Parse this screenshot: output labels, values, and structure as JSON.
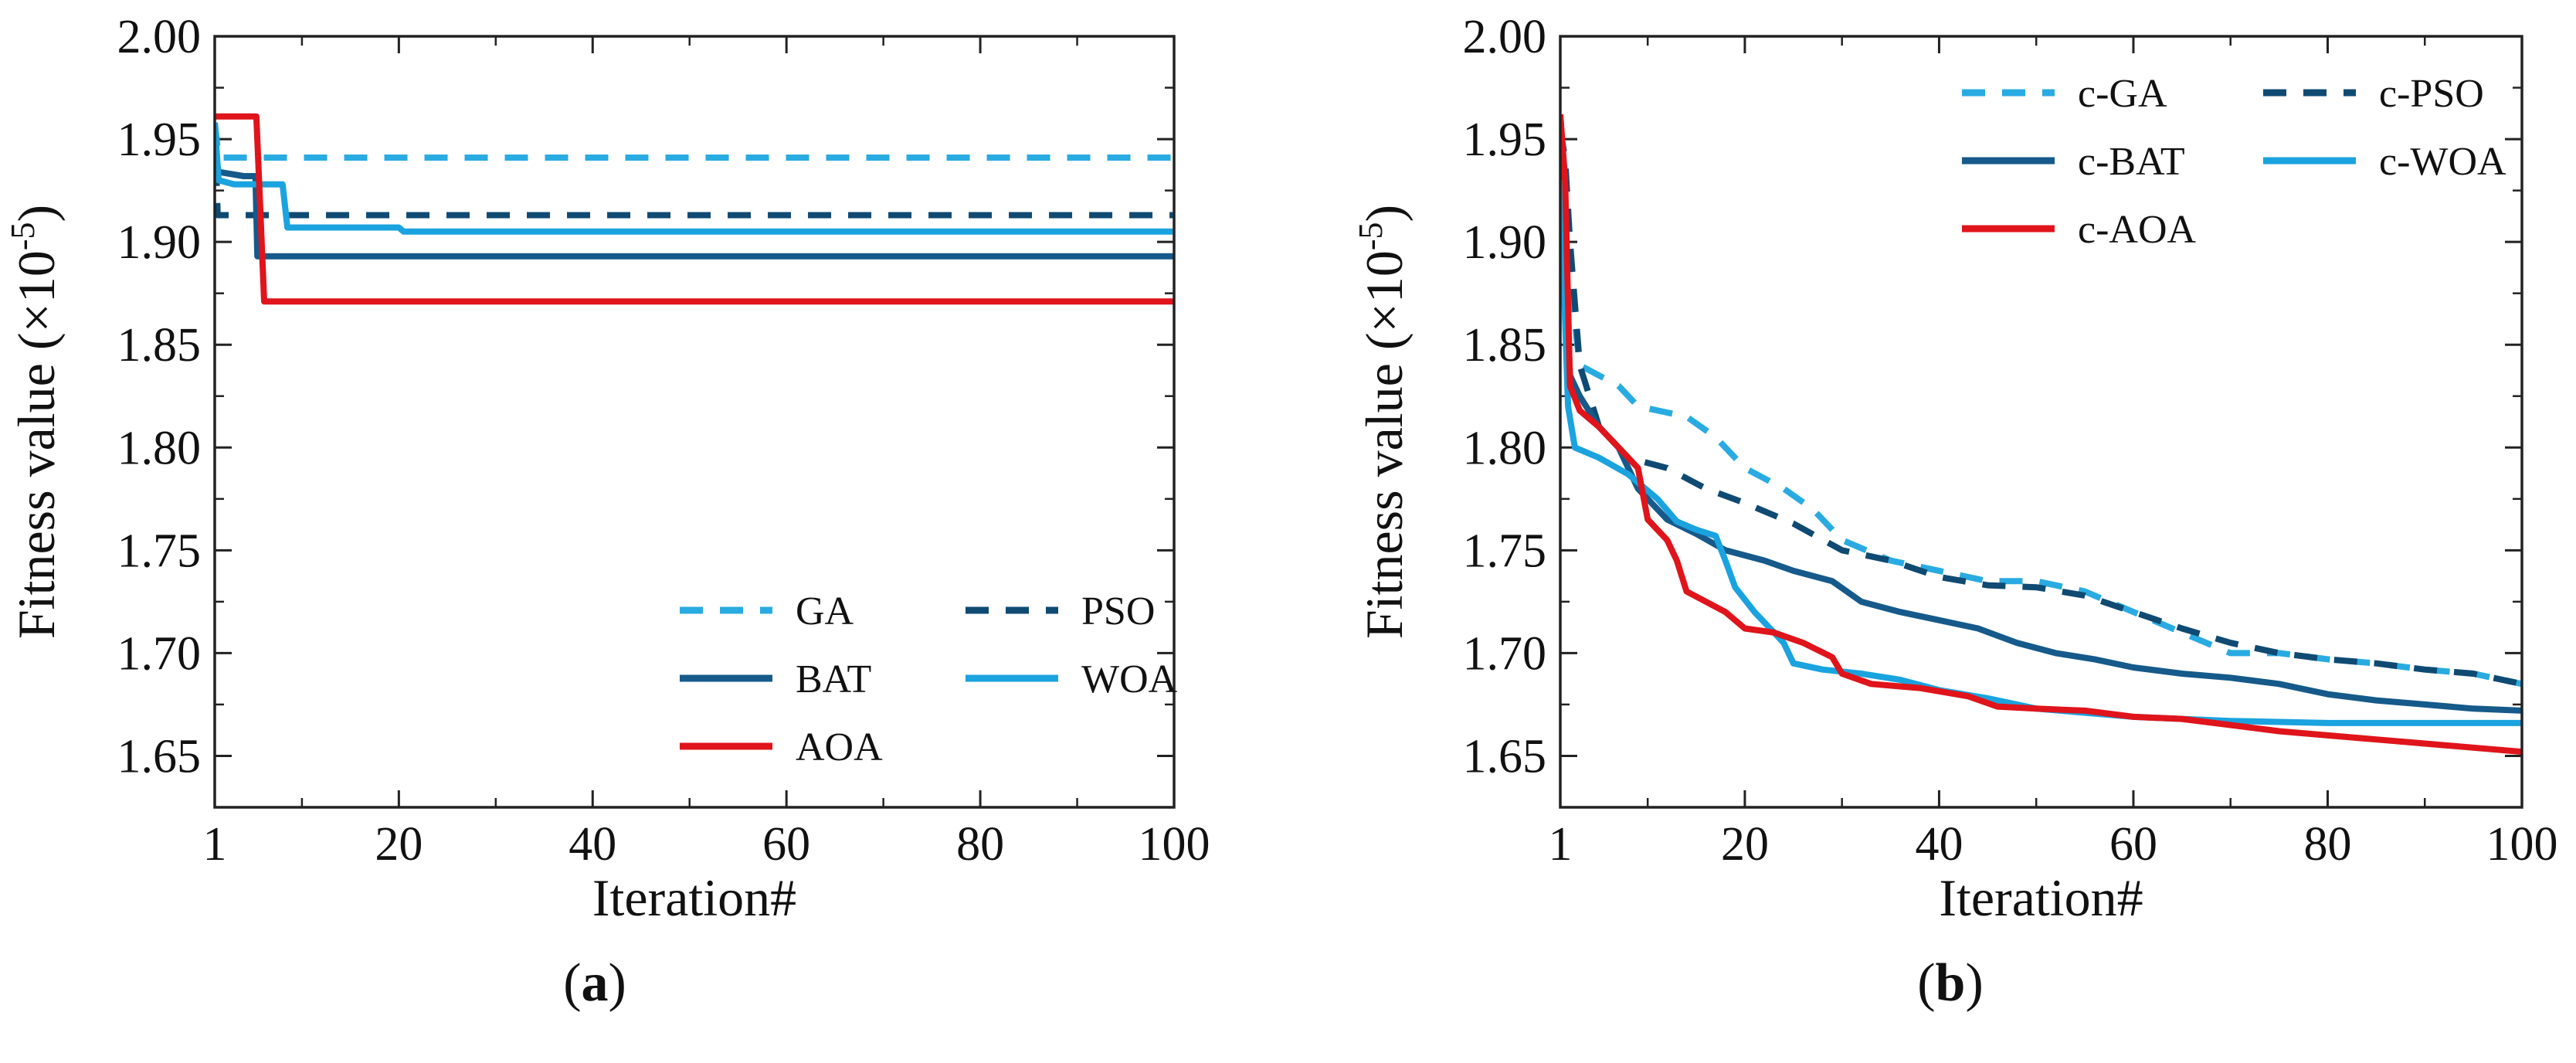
{
  "colors": {
    "ga": "#29abe2",
    "pso": "#0f4a73",
    "bat": "#155a8a",
    "woa": "#1aa3df",
    "aoa": "#e0141b",
    "axis": "#222222"
  },
  "chart_data": [
    {
      "type": "line",
      "panel_label": "a",
      "xlabel": "Iteration#",
      "ylabel": "Fitness value (×10",
      "ylabel_exponent": "-5",
      "ylabel_close": ")",
      "xlim": [
        1,
        100
      ],
      "ylim": [
        1.625,
        2.0
      ],
      "xticks": [
        1,
        20,
        40,
        60,
        80,
        100
      ],
      "xtick_labels": [
        "1",
        "20",
        "40",
        "60",
        "80",
        "100"
      ],
      "yticks": [
        1.65,
        1.7,
        1.75,
        1.8,
        1.85,
        1.9,
        1.95,
        2.0
      ],
      "ytick_labels": [
        "1.65",
        "1.70",
        "1.75",
        "1.80",
        "1.85",
        "1.90",
        "1.95",
        "2.00"
      ],
      "legend": {
        "placement": "bottom-right",
        "columns": 2,
        "entries": [
          {
            "series": "GA",
            "label": "GA"
          },
          {
            "series": "PSO",
            "label": "PSO"
          },
          {
            "series": "BAT",
            "label": "BAT"
          },
          {
            "series": "WOA",
            "label": "WOA"
          },
          {
            "series": "AOA",
            "label": "AOA"
          }
        ]
      },
      "series": [
        {
          "name": "GA",
          "label": "GA",
          "color_key": "ga",
          "dash": true,
          "points": [
            [
              1,
              1.958
            ],
            [
              1.4,
              1.941
            ],
            [
              100,
              1.941
            ]
          ]
        },
        {
          "name": "PSO",
          "label": "PSO",
          "color_key": "pso",
          "dash": true,
          "points": [
            [
              1,
              1.958
            ],
            [
              1.3,
              1.913
            ],
            [
              100,
              1.913
            ]
          ]
        },
        {
          "name": "BAT",
          "label": "BAT",
          "color_key": "bat",
          "dash": false,
          "points": [
            [
              1,
              1.944
            ],
            [
              1.4,
              1.934
            ],
            [
              4,
              1.932
            ],
            [
              5.2,
              1.932
            ],
            [
              5.4,
              1.893
            ],
            [
              100,
              1.893
            ]
          ]
        },
        {
          "name": "WOA",
          "label": "WOA",
          "color_key": "woa",
          "dash": false,
          "points": [
            [
              1,
              1.958
            ],
            [
              1.4,
              1.93
            ],
            [
              3,
              1.928
            ],
            [
              8,
              1.928
            ],
            [
              8.5,
              1.907
            ],
            [
              20,
              1.907
            ],
            [
              20.5,
              1.905
            ],
            [
              100,
              1.905
            ]
          ]
        },
        {
          "name": "AOA",
          "label": "AOA",
          "color_key": "aoa",
          "dash": false,
          "points": [
            [
              1,
              1.961
            ],
            [
              5.3,
              1.961
            ],
            [
              6.1,
              1.871
            ],
            [
              100,
              1.871
            ]
          ]
        }
      ]
    },
    {
      "type": "line",
      "panel_label": "b",
      "xlabel": "Iteration#",
      "ylabel": "Fitness value (×10",
      "ylabel_exponent": "-5",
      "ylabel_close": ")",
      "xlim": [
        1,
        100
      ],
      "ylim": [
        1.625,
        2.0
      ],
      "xticks": [
        1,
        20,
        40,
        60,
        80,
        100
      ],
      "xtick_labels": [
        "1",
        "20",
        "40",
        "60",
        "80",
        "100"
      ],
      "yticks": [
        1.65,
        1.7,
        1.75,
        1.8,
        1.85,
        1.9,
        1.95,
        2.0
      ],
      "ytick_labels": [
        "1.65",
        "1.70",
        "1.75",
        "1.80",
        "1.85",
        "1.90",
        "1.95",
        "2.00"
      ],
      "legend": {
        "placement": "top-center",
        "columns": 2,
        "entries": [
          {
            "series": "c-GA",
            "label": "c-GA"
          },
          {
            "series": "c-PSO",
            "label": "c-PSO"
          },
          {
            "series": "c-BAT",
            "label": "c-BAT"
          },
          {
            "series": "c-WOA",
            "label": "c-WOA"
          },
          {
            "series": "c-AOA",
            "label": "c-AOA"
          }
        ]
      },
      "series": [
        {
          "name": "c-GA",
          "label": "c-GA",
          "color_key": "ga",
          "dash": true,
          "points": [
            [
              1,
              1.955
            ],
            [
              2,
              1.88
            ],
            [
              3,
              1.84
            ],
            [
              5,
              1.835
            ],
            [
              7,
              1.83
            ],
            [
              9,
              1.82
            ],
            [
              12,
              1.817
            ],
            [
              14,
              1.815
            ],
            [
              17,
              1.805
            ],
            [
              20,
              1.79
            ],
            [
              24,
              1.78
            ],
            [
              27,
              1.77
            ],
            [
              30,
              1.755
            ],
            [
              35,
              1.745
            ],
            [
              40,
              1.74
            ],
            [
              45,
              1.735
            ],
            [
              50,
              1.735
            ],
            [
              55,
              1.73
            ],
            [
              60,
              1.72
            ],
            [
              65,
              1.71
            ],
            [
              70,
              1.7
            ],
            [
              75,
              1.7
            ],
            [
              80,
              1.697
            ],
            [
              85,
              1.695
            ],
            [
              90,
              1.692
            ],
            [
              95,
              1.69
            ],
            [
              100,
              1.685
            ]
          ]
        },
        {
          "name": "c-PSO",
          "label": "c-PSO",
          "color_key": "pso",
          "dash": true,
          "points": [
            [
              1,
              1.955
            ],
            [
              1.5,
              1.94
            ],
            [
              2,
              1.9
            ],
            [
              3,
              1.84
            ],
            [
              5,
              1.81
            ],
            [
              8,
              1.795
            ],
            [
              12,
              1.79
            ],
            [
              16,
              1.78
            ],
            [
              20,
              1.773
            ],
            [
              25,
              1.763
            ],
            [
              30,
              1.75
            ],
            [
              35,
              1.745
            ],
            [
              40,
              1.737
            ],
            [
              45,
              1.733
            ],
            [
              50,
              1.732
            ],
            [
              55,
              1.728
            ],
            [
              60,
              1.72
            ],
            [
              65,
              1.712
            ],
            [
              70,
              1.705
            ],
            [
              75,
              1.7
            ],
            [
              80,
              1.697
            ],
            [
              85,
              1.695
            ],
            [
              90,
              1.692
            ],
            [
              95,
              1.69
            ],
            [
              100,
              1.685
            ]
          ]
        },
        {
          "name": "c-BAT",
          "label": "c-BAT",
          "color_key": "bat",
          "dash": false,
          "points": [
            [
              1,
              1.945
            ],
            [
              2,
              1.835
            ],
            [
              3,
              1.825
            ],
            [
              5,
              1.81
            ],
            [
              7,
              1.8
            ],
            [
              9,
              1.78
            ],
            [
              12,
              1.765
            ],
            [
              15,
              1.758
            ],
            [
              18,
              1.75
            ],
            [
              22,
              1.745
            ],
            [
              25,
              1.74
            ],
            [
              29,
              1.735
            ],
            [
              32,
              1.725
            ],
            [
              36,
              1.72
            ],
            [
              40,
              1.716
            ],
            [
              44,
              1.712
            ],
            [
              48,
              1.705
            ],
            [
              52,
              1.7
            ],
            [
              56,
              1.697
            ],
            [
              60,
              1.693
            ],
            [
              65,
              1.69
            ],
            [
              70,
              1.688
            ],
            [
              75,
              1.685
            ],
            [
              80,
              1.68
            ],
            [
              85,
              1.677
            ],
            [
              90,
              1.675
            ],
            [
              95,
              1.673
            ],
            [
              100,
              1.672
            ]
          ]
        },
        {
          "name": "c-WOA",
          "label": "c-WOA",
          "color_key": "woa",
          "dash": false,
          "points": [
            [
              1,
              1.93
            ],
            [
              1.8,
              1.82
            ],
            [
              2.5,
              1.8
            ],
            [
              5,
              1.795
            ],
            [
              8,
              1.787
            ],
            [
              11,
              1.775
            ],
            [
              13,
              1.764
            ],
            [
              15,
              1.76
            ],
            [
              17,
              1.757
            ],
            [
              18,
              1.745
            ],
            [
              19,
              1.732
            ],
            [
              21,
              1.72
            ],
            [
              23,
              1.71
            ],
            [
              24,
              1.705
            ],
            [
              25,
              1.695
            ],
            [
              28,
              1.692
            ],
            [
              32,
              1.69
            ],
            [
              36,
              1.687
            ],
            [
              40,
              1.682
            ],
            [
              45,
              1.678
            ],
            [
              50,
              1.673
            ],
            [
              55,
              1.671
            ],
            [
              60,
              1.669
            ],
            [
              65,
              1.668
            ],
            [
              70,
              1.667
            ],
            [
              80,
              1.666
            ],
            [
              100,
              1.666
            ]
          ]
        },
        {
          "name": "c-AOA",
          "label": "c-AOA",
          "color_key": "aoa",
          "dash": false,
          "points": [
            [
              1,
              1.962
            ],
            [
              1.5,
              1.93
            ],
            [
              2,
              1.83
            ],
            [
              3,
              1.818
            ],
            [
              5,
              1.81
            ],
            [
              7,
              1.8
            ],
            [
              9,
              1.79
            ],
            [
              10,
              1.765
            ],
            [
              12,
              1.755
            ],
            [
              13,
              1.745
            ],
            [
              14,
              1.73
            ],
            [
              16,
              1.725
            ],
            [
              18,
              1.72
            ],
            [
              20,
              1.712
            ],
            [
              23,
              1.71
            ],
            [
              26,
              1.705
            ],
            [
              29,
              1.698
            ],
            [
              30,
              1.69
            ],
            [
              33,
              1.685
            ],
            [
              38,
              1.683
            ],
            [
              43,
              1.679
            ],
            [
              46,
              1.674
            ],
            [
              50,
              1.673
            ],
            [
              55,
              1.672
            ],
            [
              60,
              1.669
            ],
            [
              65,
              1.668
            ],
            [
              70,
              1.665
            ],
            [
              75,
              1.662
            ],
            [
              80,
              1.66
            ],
            [
              85,
              1.658
            ],
            [
              90,
              1.656
            ],
            [
              95,
              1.654
            ],
            [
              100,
              1.652
            ]
          ]
        }
      ]
    }
  ]
}
